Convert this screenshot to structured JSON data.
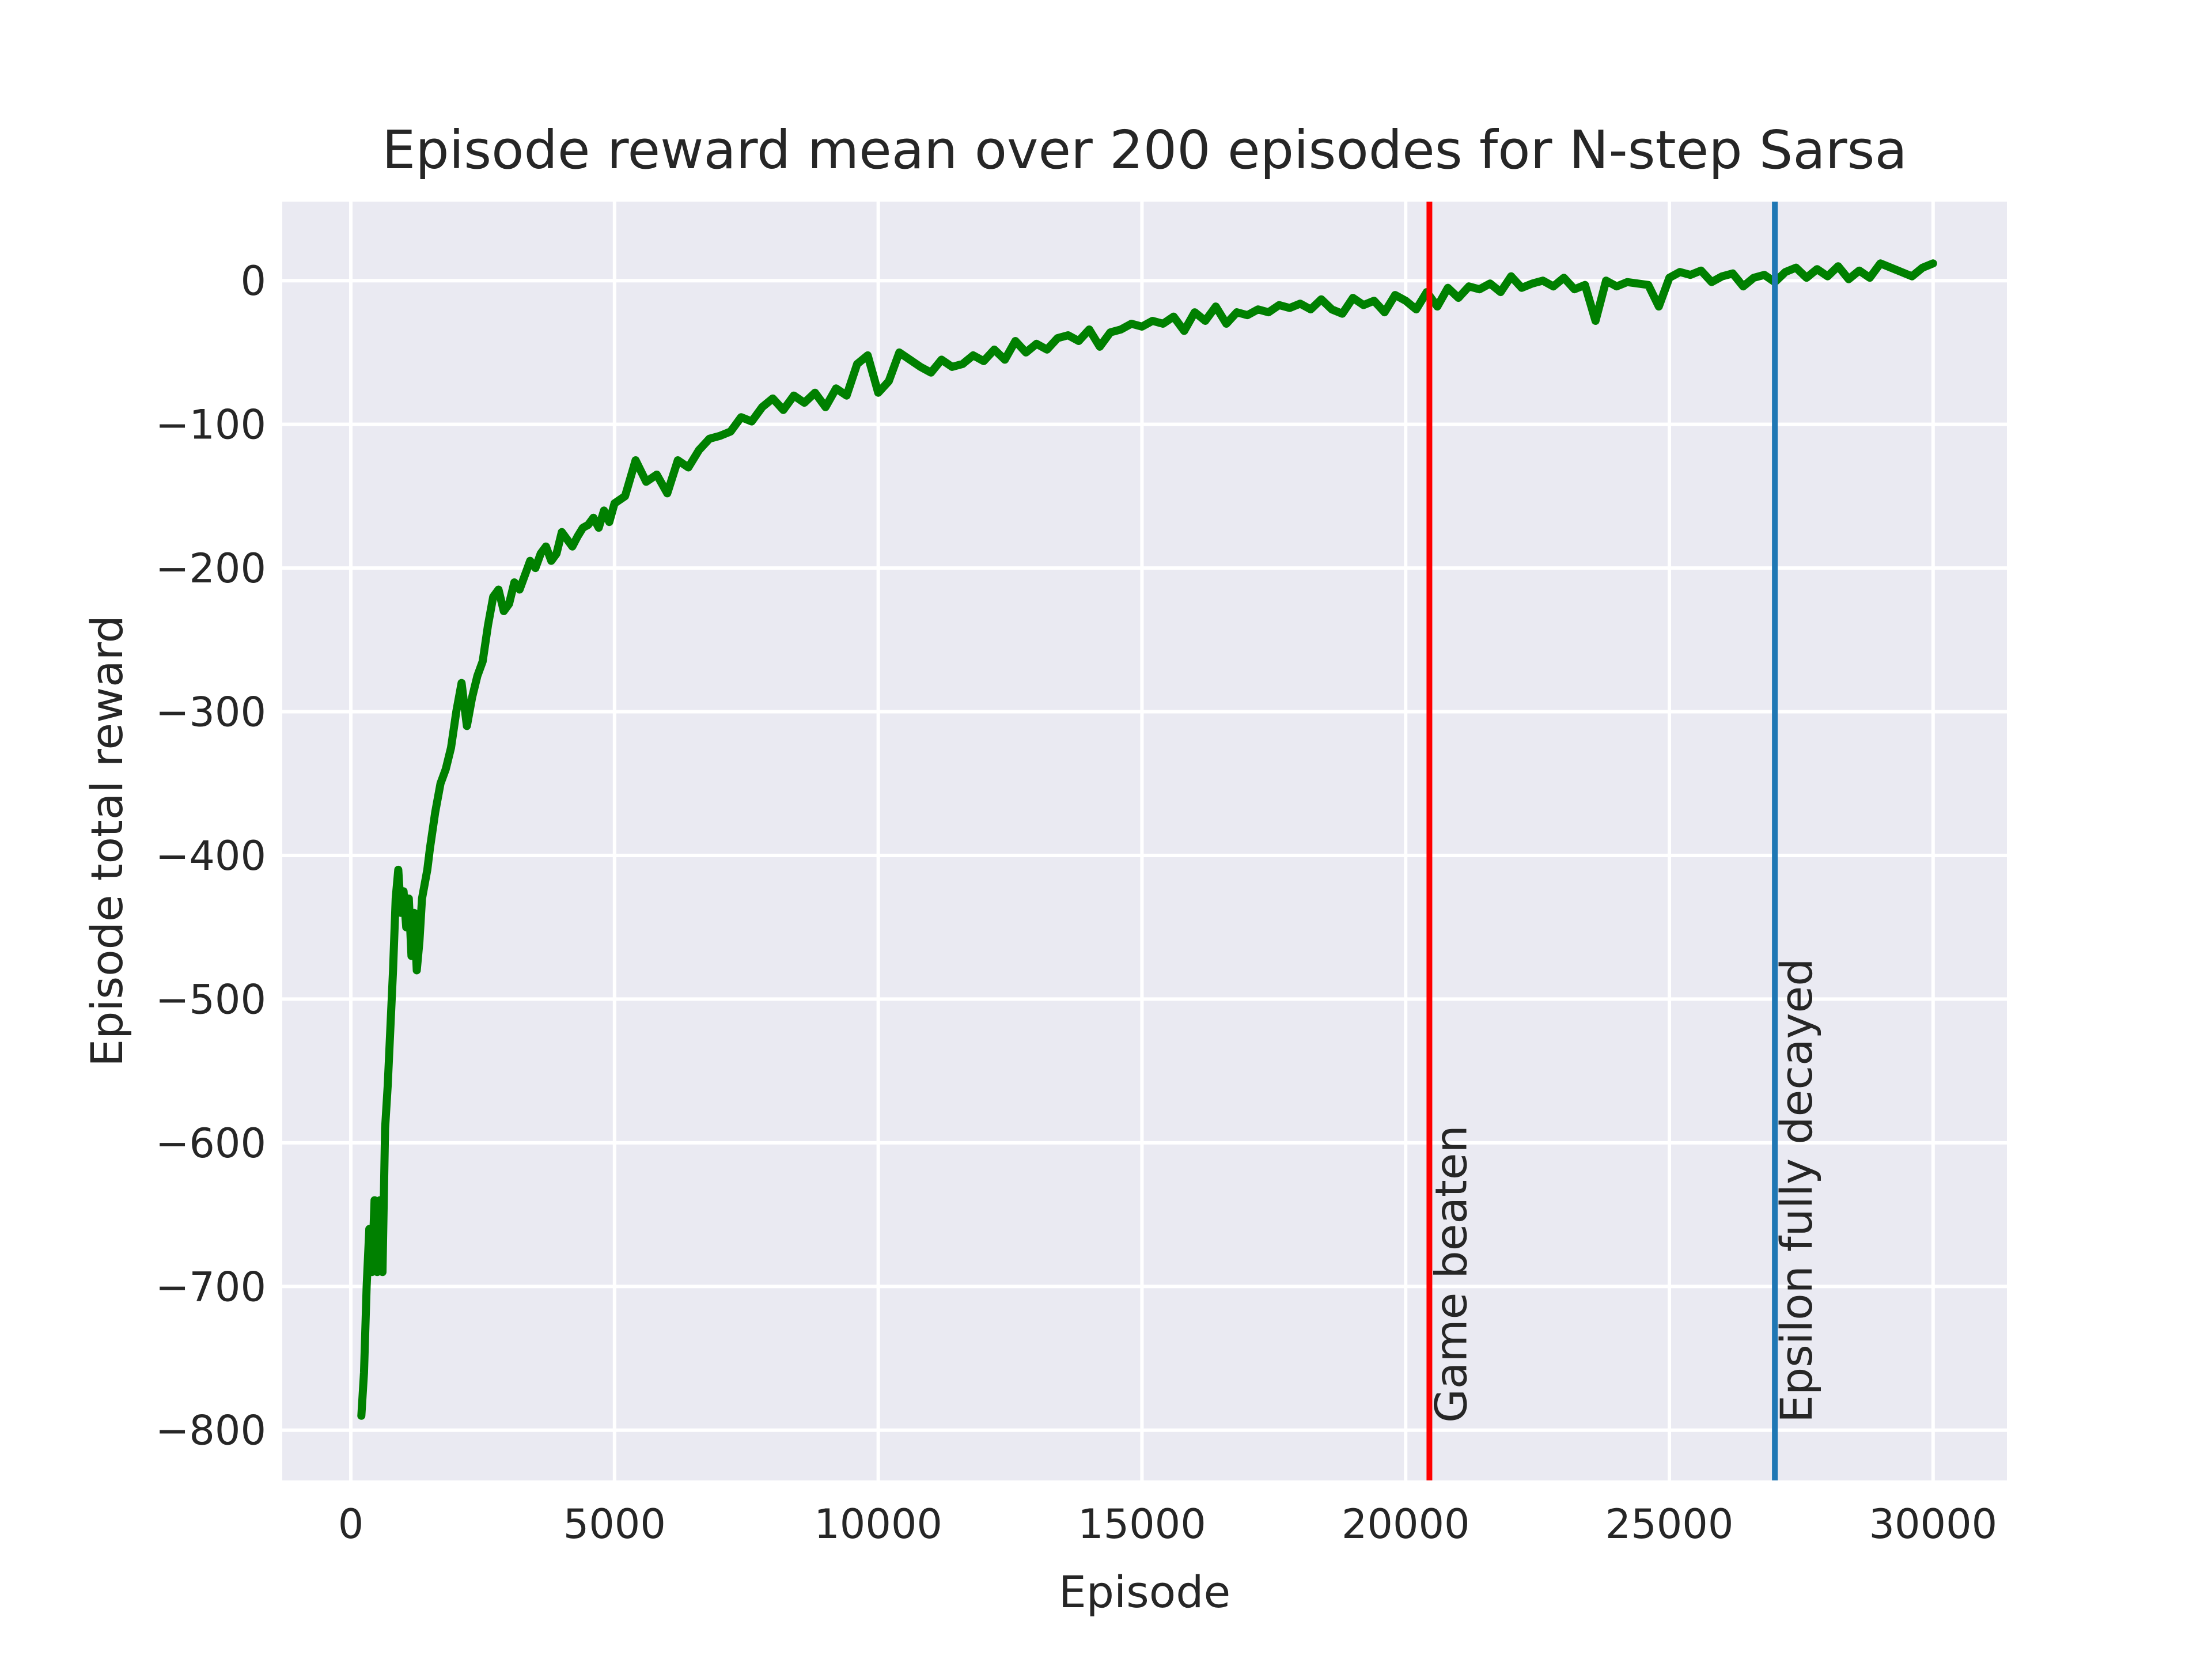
{
  "chart_data": {
    "type": "line",
    "title": "Episode reward mean over 200 episodes for N-step Sarsa",
    "xlabel": "Episode",
    "ylabel": "Episode total reward",
    "xlim": [
      -1300,
      31400
    ],
    "ylim": [
      -835,
      55
    ],
    "grid": true,
    "xticks": [
      0,
      5000,
      10000,
      15000,
      20000,
      25000,
      30000
    ],
    "xtick_labels": [
      "0",
      "5000",
      "10000",
      "15000",
      "20000",
      "25000",
      "30000"
    ],
    "yticks": [
      0,
      -100,
      -200,
      -300,
      -400,
      -500,
      -600,
      -700,
      -800
    ],
    "ytick_labels": [
      "0",
      "−100",
      "−200",
      "−300",
      "−400",
      "−500",
      "−600",
      "−700",
      "−800"
    ],
    "series": [
      {
        "name": "reward mean",
        "color": "#008000",
        "x": [
          200,
          250,
          300,
          350,
          400,
          450,
          500,
          550,
          600,
          650,
          700,
          750,
          800,
          850,
          900,
          950,
          1000,
          1050,
          1100,
          1150,
          1200,
          1250,
          1300,
          1350,
          1400,
          1450,
          1500,
          1600,
          1700,
          1800,
          1900,
          2000,
          2100,
          2200,
          2300,
          2400,
          2500,
          2600,
          2700,
          2800,
          2900,
          3000,
          3100,
          3200,
          3300,
          3400,
          3500,
          3600,
          3700,
          3800,
          3900,
          4000,
          4100,
          4200,
          4300,
          4400,
          4500,
          4600,
          4700,
          4800,
          4900,
          5000,
          5200,
          5400,
          5600,
          5800,
          6000,
          6200,
          6400,
          6600,
          6800,
          7000,
          7200,
          7400,
          7600,
          7800,
          8000,
          8200,
          8400,
          8600,
          8800,
          9000,
          9200,
          9400,
          9600,
          9800,
          10000,
          10200,
          10400,
          10600,
          10800,
          11000,
          11200,
          11400,
          11600,
          11800,
          12000,
          12200,
          12400,
          12600,
          12800,
          13000,
          13200,
          13400,
          13600,
          13800,
          14000,
          14200,
          14400,
          14600,
          14800,
          15000,
          15200,
          15400,
          15600,
          15800,
          16000,
          16200,
          16400,
          16600,
          16800,
          17000,
          17200,
          17400,
          17600,
          17800,
          18000,
          18200,
          18400,
          18600,
          18800,
          19000,
          19200,
          19400,
          19600,
          19800,
          20000,
          20200,
          20400,
          20600,
          20800,
          21000,
          21200,
          21400,
          21600,
          21800,
          22000,
          22200,
          22400,
          22600,
          22800,
          23000,
          23200,
          23400,
          23600,
          23800,
          24000,
          24200,
          24400,
          24600,
          24800,
          25000,
          25200,
          25400,
          25600,
          25800,
          26000,
          26200,
          26400,
          26600,
          26800,
          27000,
          27200,
          27400,
          27600,
          27800,
          28000,
          28200,
          28400,
          28600,
          28800,
          29000,
          29200,
          29400,
          29600,
          29800,
          30000
        ],
        "y": [
          -790,
          -760,
          -700,
          -660,
          -690,
          -640,
          -690,
          -640,
          -690,
          -590,
          -560,
          -520,
          -480,
          -430,
          -410,
          -440,
          -425,
          -450,
          -430,
          -470,
          -440,
          -480,
          -460,
          -430,
          -420,
          -410,
          -395,
          -370,
          -350,
          -340,
          -325,
          -300,
          -280,
          -310,
          -290,
          -275,
          -265,
          -240,
          -220,
          -215,
          -230,
          -225,
          -210,
          -215,
          -205,
          -195,
          -200,
          -190,
          -185,
          -195,
          -190,
          -175,
          -180,
          -185,
          -178,
          -172,
          -170,
          -165,
          -172,
          -160,
          -168,
          -155,
          -150,
          -125,
          -140,
          -135,
          -148,
          -125,
          -130,
          -118,
          -110,
          -108,
          -105,
          -95,
          -98,
          -88,
          -82,
          -90,
          -80,
          -85,
          -78,
          -88,
          -75,
          -80,
          -58,
          -52,
          -78,
          -70,
          -50,
          -55,
          -60,
          -64,
          -55,
          -60,
          -58,
          -52,
          -56,
          -48,
          -55,
          -42,
          -50,
          -44,
          -48,
          -40,
          -38,
          -42,
          -34,
          -46,
          -36,
          -34,
          -30,
          -32,
          -28,
          -30,
          -25,
          -35,
          -22,
          -28,
          -18,
          -30,
          -22,
          -24,
          -20,
          -22,
          -17,
          -19,
          -16,
          -20,
          -13,
          -20,
          -23,
          -12,
          -17,
          -14,
          -22,
          -10,
          -14,
          -20,
          -8,
          -18,
          -5,
          -12,
          -4,
          -6,
          -2,
          -8,
          3,
          -5,
          -2,
          0,
          -4,
          2,
          -6,
          -3,
          -28,
          0,
          -4,
          -1,
          -2,
          -3,
          -18,
          2,
          6,
          4,
          7,
          -1,
          3,
          5,
          -4,
          2,
          4,
          -1,
          6,
          9,
          2,
          8,
          3,
          10,
          1,
          7,
          2,
          12,
          9,
          6,
          3,
          9,
          12
        ]
      }
    ],
    "vlines": [
      {
        "x": 20450,
        "color": "#ff0000",
        "label": "Game beaten"
      },
      {
        "x": 27000,
        "color": "#1f77b4",
        "label": "Epsilon fully decayed"
      }
    ]
  }
}
